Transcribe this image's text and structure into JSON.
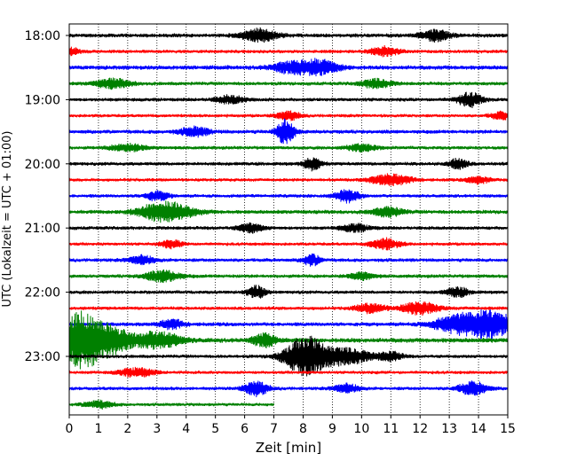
{
  "chart_data": {
    "type": "line",
    "description_kind": "helicorder",
    "xlabel": "Zeit  [min]",
    "ylabel": "UTC (Lokalzeit = UTC + 01:00)",
    "xlim": [
      0,
      15
    ],
    "x_ticks": [
      0,
      1,
      2,
      3,
      4,
      5,
      6,
      7,
      8,
      9,
      10,
      11,
      12,
      13,
      14,
      15
    ],
    "x_tick_labels": [
      "0",
      "1",
      "2",
      "3",
      "4",
      "5",
      "6",
      "7",
      "8",
      "9",
      "10",
      "11",
      "12",
      "13",
      "14",
      "15"
    ],
    "y_tick_labels": [
      "18:00",
      "19:00",
      "20:00",
      "21:00",
      "22:00",
      "23:00"
    ],
    "grid": "vertical-dotted",
    "colors": [
      "#000000",
      "#ff0000",
      "#0000ff",
      "#008000"
    ],
    "trace_minutes": 15,
    "traces": [
      {
        "start": "18:00",
        "color": "#000000",
        "base": 2.5,
        "events": [
          [
            6.5,
            7,
            0.6
          ],
          [
            12.5,
            6,
            0.5
          ]
        ]
      },
      {
        "start": "18:15",
        "color": "#ff0000",
        "base": 2.2,
        "events": [
          [
            0.0,
            5,
            0.3
          ],
          [
            10.8,
            5,
            0.5
          ]
        ]
      },
      {
        "start": "18:30",
        "color": "#0000ff",
        "base": 2.8,
        "events": [
          [
            8.5,
            8,
            0.7
          ],
          [
            7.5,
            5,
            0.6
          ]
        ]
      },
      {
        "start": "18:45",
        "color": "#008000",
        "base": 2.3,
        "events": [
          [
            1.5,
            5,
            0.6
          ],
          [
            10.5,
            5,
            0.5
          ]
        ]
      },
      {
        "start": "19:00",
        "color": "#000000",
        "base": 2.3,
        "events": [
          [
            13.7,
            8,
            0.4
          ],
          [
            5.5,
            4,
            0.5
          ]
        ]
      },
      {
        "start": "19:15",
        "color": "#ff0000",
        "base": 2.0,
        "events": [
          [
            7.5,
            5,
            0.4
          ],
          [
            14.8,
            4,
            0.4
          ]
        ]
      },
      {
        "start": "19:30",
        "color": "#0000ff",
        "base": 2.5,
        "events": [
          [
            7.4,
            14,
            0.3
          ],
          [
            4.3,
            5,
            0.5
          ]
        ]
      },
      {
        "start": "19:45",
        "color": "#008000",
        "base": 2.2,
        "events": [
          [
            2.0,
            4,
            0.6
          ],
          [
            10.0,
            4,
            0.5
          ]
        ]
      },
      {
        "start": "20:00",
        "color": "#000000",
        "base": 2.3,
        "events": [
          [
            8.3,
            7,
            0.3
          ],
          [
            13.3,
            6,
            0.3
          ]
        ]
      },
      {
        "start": "20:15",
        "color": "#ff0000",
        "base": 2.0,
        "events": [
          [
            11.0,
            6,
            0.7
          ],
          [
            14.0,
            4,
            0.4
          ]
        ]
      },
      {
        "start": "20:30",
        "color": "#0000ff",
        "base": 2.2,
        "events": [
          [
            9.5,
            7,
            0.4
          ],
          [
            3.0,
            5,
            0.4
          ]
        ]
      },
      {
        "start": "20:45",
        "color": "#008000",
        "base": 2.5,
        "events": [
          [
            3.3,
            11,
            0.9
          ],
          [
            10.9,
            5,
            0.5
          ]
        ]
      },
      {
        "start": "21:00",
        "color": "#000000",
        "base": 2.3,
        "events": [
          [
            6.2,
            5,
            0.4
          ],
          [
            9.8,
            4,
            0.5
          ]
        ]
      },
      {
        "start": "21:15",
        "color": "#ff0000",
        "base": 2.0,
        "events": [
          [
            10.8,
            6,
            0.5
          ],
          [
            3.5,
            4,
            0.4
          ]
        ]
      },
      {
        "start": "21:30",
        "color": "#0000ff",
        "base": 2.3,
        "events": [
          [
            8.3,
            6,
            0.3
          ],
          [
            2.5,
            5,
            0.4
          ]
        ]
      },
      {
        "start": "21:45",
        "color": "#008000",
        "base": 2.3,
        "events": [
          [
            3.2,
            6,
            0.6
          ],
          [
            10.0,
            4,
            0.4
          ]
        ]
      },
      {
        "start": "22:00",
        "color": "#000000",
        "base": 2.2,
        "events": [
          [
            6.4,
            7,
            0.3
          ],
          [
            13.3,
            5,
            0.4
          ]
        ]
      },
      {
        "start": "22:15",
        "color": "#ff0000",
        "base": 2.2,
        "events": [
          [
            12.0,
            7,
            0.6
          ],
          [
            10.3,
            5,
            0.5
          ]
        ]
      },
      {
        "start": "22:30",
        "color": "#0000ff",
        "base": 2.5,
        "events": [
          [
            14.4,
            14,
            0.9
          ],
          [
            13.2,
            8,
            0.8
          ],
          [
            3.5,
            5,
            0.4
          ]
        ]
      },
      {
        "start": "22:45",
        "color": "#008000",
        "base": 3.0,
        "events": [
          [
            0.3,
            26,
            0.6
          ],
          [
            1.2,
            18,
            0.8
          ],
          [
            3.0,
            9,
            0.8
          ],
          [
            6.7,
            7,
            0.4
          ]
        ]
      },
      {
        "start": "23:00",
        "color": "#000000",
        "base": 2.2,
        "events": [
          [
            8.1,
            22,
            0.7
          ],
          [
            9.5,
            9,
            0.8
          ],
          [
            11.0,
            5,
            0.4
          ]
        ]
      },
      {
        "start": "23:15",
        "color": "#ff0000",
        "base": 2.0,
        "events": [
          [
            2.3,
            5,
            0.6
          ]
        ]
      },
      {
        "start": "23:30",
        "color": "#0000ff",
        "base": 2.2,
        "events": [
          [
            6.4,
            8,
            0.4
          ],
          [
            13.8,
            7,
            0.5
          ],
          [
            9.5,
            5,
            0.4
          ]
        ]
      },
      {
        "start": "23:45",
        "color": "#008000",
        "base": 2.0,
        "end": 7.0,
        "events": [
          [
            1.0,
            4,
            0.5
          ]
        ]
      }
    ]
  }
}
